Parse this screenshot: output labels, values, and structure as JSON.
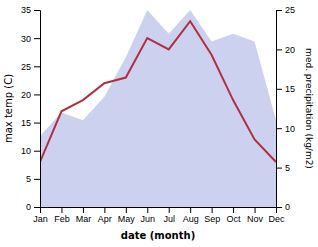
{
  "chart_data": {
    "type": "line",
    "xlabel": "date (month)",
    "ylabel": "max temp (C)",
    "y2label": "med. precipitation (kg/m2)",
    "categories": [
      "Jan",
      "Feb",
      "Mar",
      "Apr",
      "May",
      "Jun",
      "Jul",
      "Aug",
      "Sep",
      "Oct",
      "Nov",
      "Dec"
    ],
    "series": [
      {
        "type": "area",
        "axis": "y2",
        "color": "#b0b8e8",
        "values": [
          9,
          12,
          11,
          14,
          19,
          25,
          22,
          25,
          21,
          22,
          21,
          11
        ]
      },
      {
        "type": "line",
        "color": "#b03040",
        "values": [
          8,
          17,
          19,
          22,
          23,
          30,
          28,
          33,
          27,
          19,
          12,
          8
        ]
      }
    ],
    "ylim": [
      0,
      35
    ],
    "yticks": [
      0,
      5,
      10,
      15,
      20,
      25,
      30,
      35
    ],
    "y2lim": [
      0,
      25
    ],
    "y2ticks": [
      0,
      5,
      10,
      15,
      20,
      25
    ]
  }
}
